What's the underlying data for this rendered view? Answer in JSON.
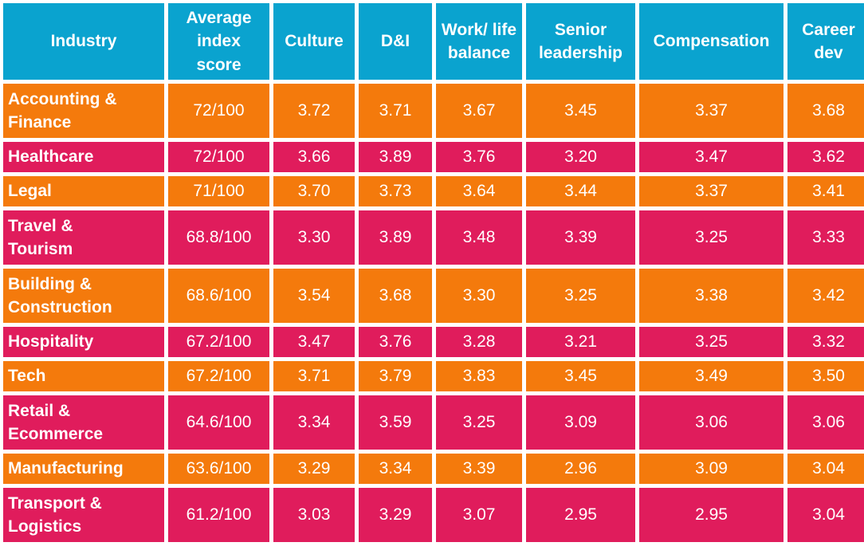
{
  "colors": {
    "header": "#0aa3cf",
    "row_odd": "#f47a0c",
    "row_even": "#e01c5c",
    "text": "#ffffff"
  },
  "chart_data": {
    "type": "table",
    "columns": [
      "Industry",
      "Average index score",
      "Culture",
      "D&I",
      "Work/ life balance",
      "Senior leadership",
      "Compensation",
      "Career dev"
    ],
    "rows": [
      [
        "Accounting & Finance",
        "72/100",
        "3.72",
        "3.71",
        "3.67",
        "3.45",
        "3.37",
        "3.68"
      ],
      [
        "Healthcare",
        "72/100",
        "3.66",
        "3.89",
        "3.76",
        "3.20",
        "3.47",
        "3.62"
      ],
      [
        "Legal",
        "71/100",
        "3.70",
        "3.73",
        "3.64",
        "3.44",
        "3.37",
        "3.41"
      ],
      [
        "Travel & Tourism",
        "68.8/100",
        "3.30",
        "3.89",
        "3.48",
        "3.39",
        "3.25",
        "3.33"
      ],
      [
        "Building & Construction",
        "68.6/100",
        "3.54",
        "3.68",
        "3.30",
        "3.25",
        "3.38",
        "3.42"
      ],
      [
        "Hospitality",
        "67.2/100",
        "3.47",
        "3.76",
        "3.28",
        "3.21",
        "3.25",
        "3.32"
      ],
      [
        "Tech",
        "67.2/100",
        "3.71",
        "3.79",
        "3.83",
        "3.45",
        "3.49",
        "3.50"
      ],
      [
        "Retail & Ecommerce",
        "64.6/100",
        "3.34",
        "3.59",
        "3.25",
        "3.09",
        "3.06",
        "3.06"
      ],
      [
        "Manufacturing",
        "63.6/100",
        "3.29",
        "3.34",
        "3.39",
        "2.96",
        "3.09",
        "3.04"
      ],
      [
        "Transport & Logistics",
        "61.2/100",
        "3.03",
        "3.29",
        "3.07",
        "2.95",
        "2.95",
        "3.04"
      ]
    ]
  }
}
